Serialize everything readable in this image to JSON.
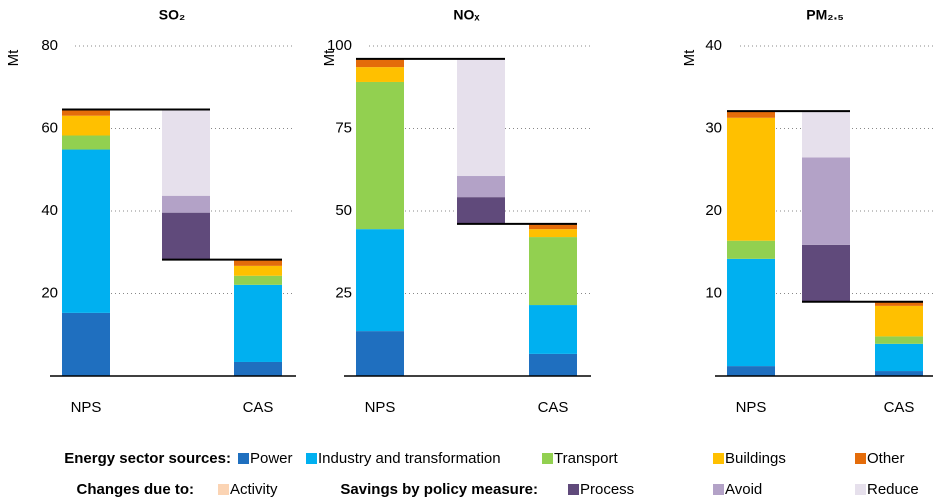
{
  "chart_data": [
    {
      "type": "bar",
      "title": "SO₂",
      "ylabel": "Mt",
      "categories": [
        "NPS",
        null,
        "CAS"
      ],
      "ylim": [
        0,
        80
      ],
      "yticks": [
        20,
        40,
        60,
        80
      ],
      "grid": true,
      "series": [
        {
          "name": "Power",
          "color": "#1f6fbf",
          "values": [
            15.3,
            null,
            3.4
          ]
        },
        {
          "name": "Industry and transformation",
          "color": "#00b0f0",
          "values": [
            39.6,
            null,
            18.7
          ]
        },
        {
          "name": "Transport",
          "color": "#92d050",
          "values": [
            3.4,
            null,
            2.2
          ]
        },
        {
          "name": "Buildings",
          "color": "#ffc000",
          "values": [
            4.8,
            null,
            2.4
          ]
        },
        {
          "name": "Other",
          "color": "#e46c0a",
          "values": [
            1.5,
            null,
            1.5
          ]
        },
        {
          "name": "Activity",
          "color": "#fbd4b4",
          "values": [
            null,
            0,
            null
          ]
        },
        {
          "name": "Process",
          "color": "#604a7b",
          "values": [
            null,
            11.4,
            null
          ]
        },
        {
          "name": "Avoid",
          "color": "#b3a2c7",
          "values": [
            null,
            4.1,
            null
          ]
        },
        {
          "name": "Reduce",
          "color": "#e6e0ec",
          "values": [
            null,
            20.9,
            null
          ]
        }
      ]
    },
    {
      "type": "bar",
      "title": "NOₓ",
      "ylabel": "Mt",
      "categories": [
        "NPS",
        null,
        "CAS"
      ],
      "ylim": [
        0,
        100
      ],
      "yticks": [
        25,
        50,
        75,
        100
      ],
      "grid": true,
      "series": [
        {
          "name": "Power",
          "color": "#1f6fbf",
          "values": [
            13.6,
            null,
            6.7
          ]
        },
        {
          "name": "Industry and transformation",
          "color": "#00b0f0",
          "values": [
            30.9,
            null,
            14.8
          ]
        },
        {
          "name": "Transport",
          "color": "#92d050",
          "values": [
            44.6,
            null,
            20.6
          ]
        },
        {
          "name": "Buildings",
          "color": "#ffc000",
          "values": [
            4.5,
            null,
            2.4
          ]
        },
        {
          "name": "Other",
          "color": "#e46c0a",
          "values": [
            2.5,
            null,
            1.6
          ]
        },
        {
          "name": "Activity",
          "color": "#fbd4b4",
          "values": [
            null,
            0,
            null
          ]
        },
        {
          "name": "Process",
          "color": "#604a7b",
          "values": [
            null,
            8.1,
            null
          ]
        },
        {
          "name": "Avoid",
          "color": "#b3a2c7",
          "values": [
            null,
            6.4,
            null
          ]
        },
        {
          "name": "Reduce",
          "color": "#e6e0ec",
          "values": [
            null,
            35.5,
            null
          ]
        }
      ]
    },
    {
      "type": "bar",
      "title": "PM₂.₅",
      "ylabel": "Mt",
      "categories": [
        "NPS",
        null,
        "CAS"
      ],
      "ylim": [
        0,
        40
      ],
      "yticks": [
        10,
        20,
        30,
        40
      ],
      "grid": true,
      "series": [
        {
          "name": "Power",
          "color": "#1f6fbf",
          "values": [
            1.2,
            null,
            0.6
          ]
        },
        {
          "name": "Industry and transformation",
          "color": "#00b0f0",
          "values": [
            13.0,
            null,
            3.3
          ]
        },
        {
          "name": "Transport",
          "color": "#92d050",
          "values": [
            2.2,
            null,
            0.9
          ]
        },
        {
          "name": "Buildings",
          "color": "#ffc000",
          "values": [
            14.9,
            null,
            3.7
          ]
        },
        {
          "name": "Other",
          "color": "#e46c0a",
          "values": [
            0.8,
            null,
            0.5
          ]
        },
        {
          "name": "Activity",
          "color": "#fbd4b4",
          "values": [
            null,
            0,
            null
          ]
        },
        {
          "name": "Process",
          "color": "#604a7b",
          "values": [
            null,
            6.9,
            null
          ]
        },
        {
          "name": "Avoid",
          "color": "#b3a2c7",
          "values": [
            null,
            10.6,
            null
          ]
        },
        {
          "name": "Reduce",
          "color": "#e6e0ec",
          "values": [
            null,
            5.6,
            null
          ]
        }
      ]
    }
  ],
  "legend": {
    "groups": [
      "Energy sector sources:",
      "Changes due to:",
      "Savings by policy measure:"
    ]
  }
}
